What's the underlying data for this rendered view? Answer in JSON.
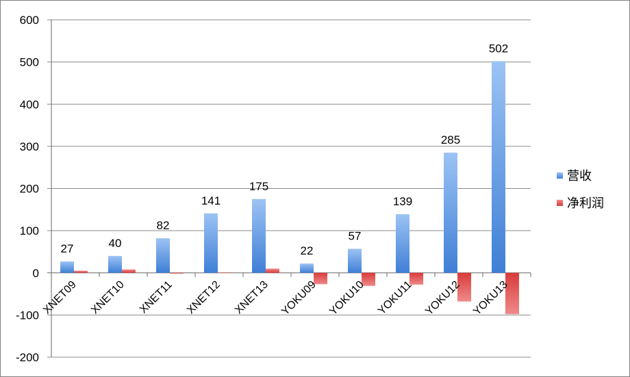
{
  "chart_data": {
    "type": "bar",
    "categories": [
      "XNET09",
      "XNET10",
      "XNET11",
      "XNET12",
      "XNET13",
      "YOKU09",
      "YOKU10",
      "YOKU11",
      "YOKU12",
      "YOKU13"
    ],
    "series": [
      {
        "name": "营收",
        "values": [
          27,
          40,
          82,
          141,
          175,
          22,
          57,
          139,
          285,
          502
        ],
        "color": "#4a86d8"
      },
      {
        "name": "净利润",
        "values": [
          5,
          8,
          -2,
          1,
          10,
          -27,
          -31,
          -28,
          -68,
          -98
        ],
        "color": "#e05555"
      }
    ],
    "data_labels": [
      "27",
      "40",
      "82",
      "141",
      "175",
      "22",
      "57",
      "139",
      "285",
      "502"
    ],
    "ylim": [
      -200,
      600
    ],
    "yticks": [
      -200,
      -100,
      0,
      100,
      200,
      300,
      400,
      500,
      600
    ],
    "ytick_labels": [
      "-200",
      "-100",
      "0",
      "100",
      "200",
      "300",
      "400",
      "500",
      "600"
    ],
    "grid": "horizontal",
    "legend_position": "right"
  }
}
